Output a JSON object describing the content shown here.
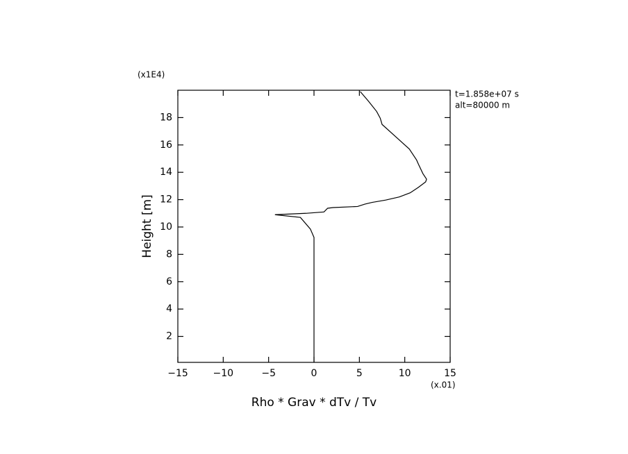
{
  "chart_data": {
    "type": "line",
    "x_label": "Rho * Grav * dTv / Tv",
    "y_label": "Height [m]",
    "x_multiplier": "(x.01)",
    "y_multiplier": "(x1E4)",
    "annotations": [
      "t=1.858e+07 s",
      "alt=80000 m"
    ],
    "xlim": [
      -15,
      15
    ],
    "xticks": [
      {
        "value": -15,
        "label": "−15"
      },
      {
        "value": -10,
        "label": "−10"
      },
      {
        "value": -5,
        "label": "−5"
      },
      0,
      5,
      10,
      15
    ],
    "ylim": [
      0.1,
      20
    ],
    "yticks": [
      2,
      4,
      6,
      8,
      10,
      12,
      14,
      16,
      18
    ],
    "series": [
      {
        "color": "#000000",
        "x": [
          0,
          0,
          -0.4,
          -1.5,
          -4.3,
          -0.9,
          1.1,
          1.5,
          2.1,
          4.8,
          5.6,
          6.4,
          7.9,
          9.4,
          10.6,
          11.5,
          12.3,
          12.4,
          12.0,
          11.5,
          11.3,
          10.5,
          9.0,
          7.5,
          7.3,
          6.9,
          6.0,
          5.1
        ],
        "values": [
          0.1,
          9.24,
          9.85,
          10.7,
          10.9,
          11.0,
          11.1,
          11.37,
          11.42,
          11.5,
          11.67,
          11.8,
          11.97,
          12.2,
          12.5,
          12.9,
          13.3,
          13.5,
          13.9,
          14.6,
          14.9,
          15.7,
          16.6,
          17.5,
          17.95,
          18.45,
          19.2,
          19.9
        ]
      }
    ]
  }
}
